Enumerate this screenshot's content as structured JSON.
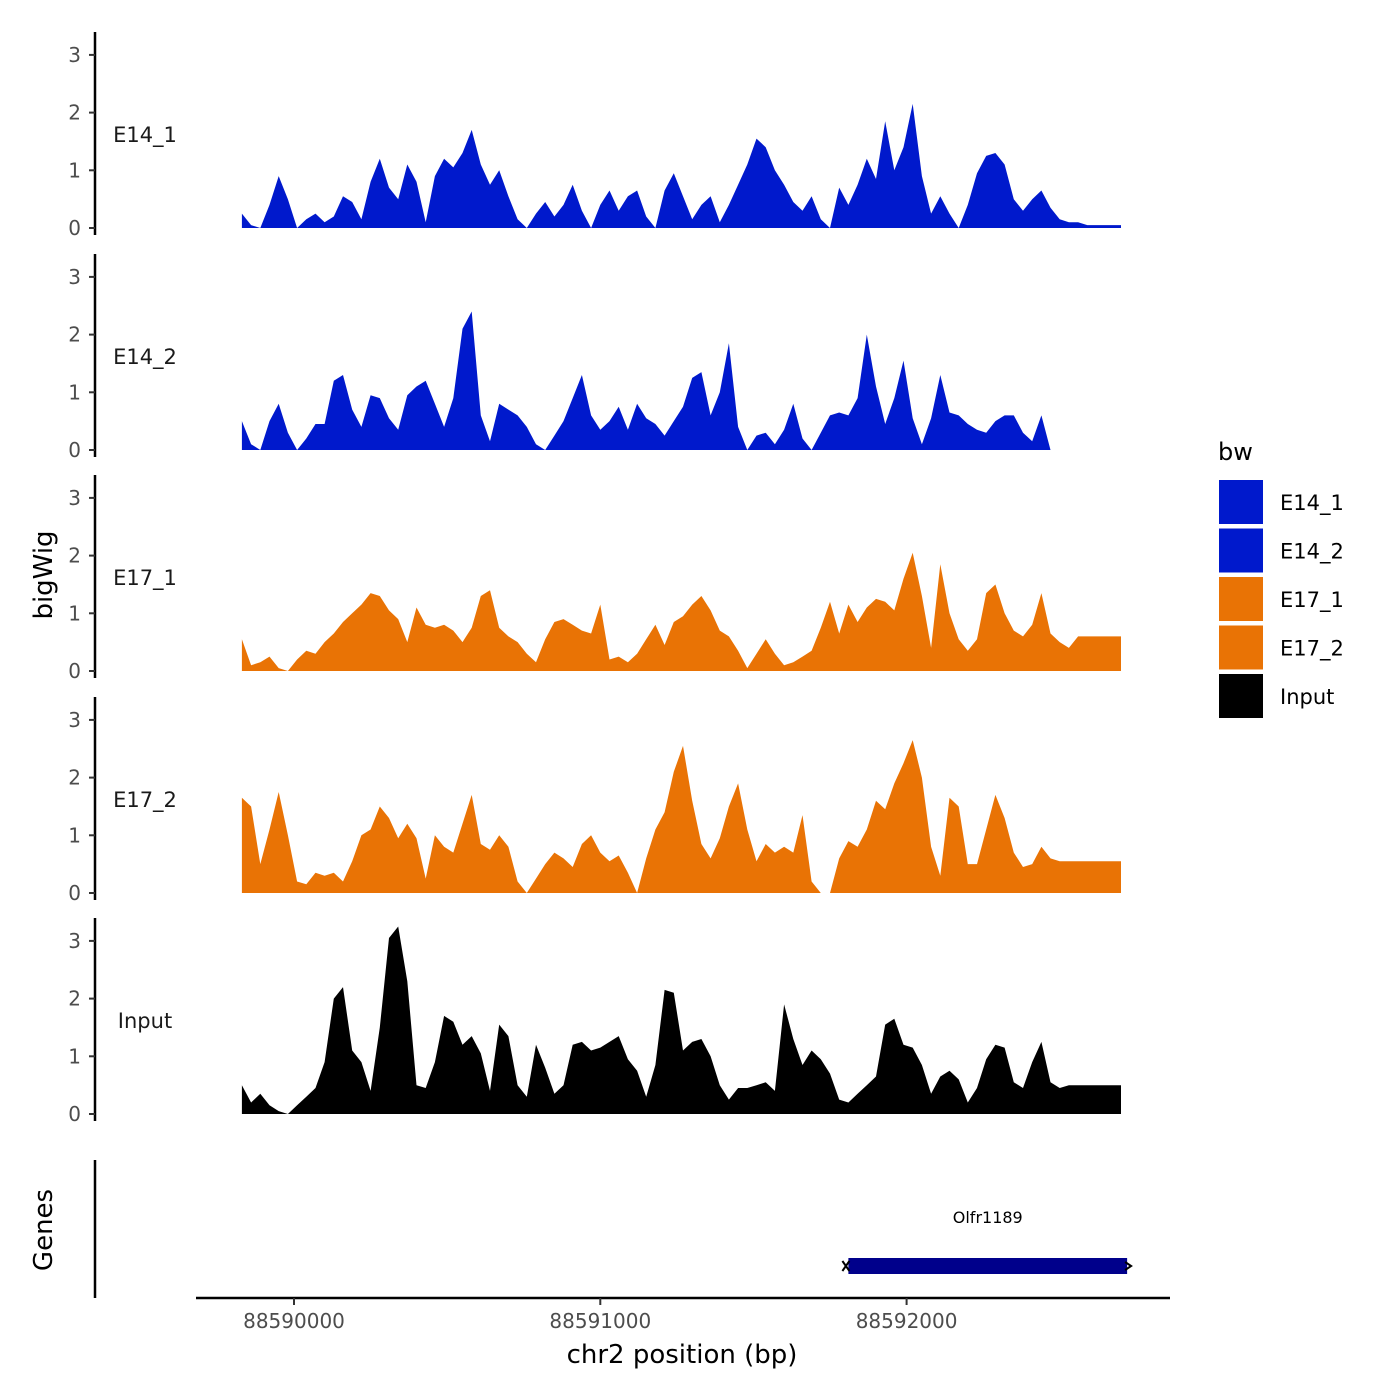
{
  "chart_data": {
    "type": "area",
    "ylabel": "bigWig",
    "xlabel": "chr2 position (bp)",
    "genes_label": "Genes",
    "xlim": [
      88589680,
      88592860
    ],
    "ylim": [
      0,
      3.3
    ],
    "y_ticks": [
      "0",
      "1",
      "2",
      "3"
    ],
    "x_ticks": [
      {
        "value": 88590000,
        "label": "88590000"
      },
      {
        "value": 88591000,
        "label": "88591000"
      },
      {
        "value": 88592000,
        "label": "88592000"
      }
    ],
    "legend": {
      "title": "bw",
      "items": [
        {
          "label": "E14_1",
          "color": "#0019CC"
        },
        {
          "label": "E14_2",
          "color": "#0019CC"
        },
        {
          "label": "E17_1",
          "color": "#E97305"
        },
        {
          "label": "E17_2",
          "color": "#E97305"
        },
        {
          "label": "Input",
          "color": "#000000"
        }
      ]
    },
    "x": [
      88589830,
      88589860,
      88589890,
      88589920,
      88589950,
      88589980,
      88590010,
      88590040,
      88590070,
      88590100,
      88590130,
      88590160,
      88590190,
      88590220,
      88590250,
      88590280,
      88590310,
      88590340,
      88590370,
      88590400,
      88590430,
      88590460,
      88590490,
      88590520,
      88590550,
      88590580,
      88590610,
      88590640,
      88590670,
      88590700,
      88590730,
      88590760,
      88590790,
      88590820,
      88590850,
      88590880,
      88590910,
      88590940,
      88590970,
      88591000,
      88591030,
      88591060,
      88591090,
      88591120,
      88591150,
      88591180,
      88591210,
      88591240,
      88591270,
      88591300,
      88591330,
      88591360,
      88591390,
      88591420,
      88591450,
      88591480,
      88591510,
      88591540,
      88591570,
      88591600,
      88591630,
      88591660,
      88591690,
      88591720,
      88591750,
      88591780,
      88591810,
      88591840,
      88591870,
      88591900,
      88591930,
      88591960,
      88591990,
      88592020,
      88592050,
      88592080,
      88592110,
      88592140,
      88592170,
      88592200,
      88592230,
      88592260,
      88592290,
      88592320,
      88592350,
      88592380,
      88592410,
      88592440,
      88592470,
      88592500,
      88592530,
      88592560,
      88592590,
      88592620,
      88592650,
      88592680,
      88592700
    ],
    "series": [
      {
        "name": "E14_1",
        "color": "#0019CC",
        "values": [
          0.25,
          0.05,
          0,
          0.4,
          0.9,
          0.5,
          0,
          0.15,
          0.25,
          0.1,
          0.2,
          0.55,
          0.45,
          0.15,
          0.8,
          1.2,
          0.7,
          0.5,
          1.1,
          0.8,
          0.1,
          0.9,
          1.2,
          1.05,
          1.3,
          1.7,
          1.1,
          0.75,
          1.0,
          0.55,
          0.15,
          0,
          0.25,
          0.45,
          0.2,
          0.4,
          0.75,
          0.3,
          0,
          0.4,
          0.65,
          0.3,
          0.55,
          0.65,
          0.2,
          0,
          0.65,
          0.95,
          0.55,
          0.15,
          0.4,
          0.55,
          0.1,
          0.4,
          0.75,
          1.1,
          1.55,
          1.4,
          1.0,
          0.75,
          0.45,
          0.3,
          0.55,
          0.15,
          0,
          0.7,
          0.4,
          0.75,
          1.2,
          0.85,
          1.85,
          1.0,
          1.4,
          2.15,
          0.9,
          0.25,
          0.55,
          0.25,
          0,
          0.4,
          0.95,
          1.25,
          1.3,
          1.1,
          0.5,
          0.3,
          0.5,
          0.65,
          0.35,
          0.15,
          0.1,
          0.1,
          0.05,
          0.05,
          0.05,
          0.05,
          0.05
        ]
      },
      {
        "name": "E14_2",
        "color": "#0019CC",
        "values": [
          0.5,
          0.1,
          0,
          0.5,
          0.8,
          0.3,
          0,
          0.2,
          0.45,
          0.45,
          1.2,
          1.3,
          0.7,
          0.4,
          0.95,
          0.9,
          0.55,
          0.35,
          0.95,
          1.1,
          1.2,
          0.8,
          0.4,
          0.9,
          2.1,
          2.4,
          0.6,
          0.15,
          0.8,
          0.7,
          0.6,
          0.4,
          0.1,
          0,
          0.25,
          0.5,
          0.9,
          1.3,
          0.6,
          0.35,
          0.5,
          0.75,
          0.35,
          0.8,
          0.55,
          0.45,
          0.25,
          0.5,
          0.75,
          1.25,
          1.35,
          0.6,
          1.0,
          1.85,
          0.4,
          0,
          0.25,
          0.3,
          0.1,
          0.35,
          0.8,
          0.2,
          0,
          0.3,
          0.6,
          0.65,
          0.6,
          0.9,
          2.0,
          1.1,
          0.45,
          0.9,
          1.55,
          0.55,
          0.1,
          0.55,
          1.3,
          0.65,
          0.6,
          0.45,
          0.35,
          0.3,
          0.5,
          0.6,
          0.6,
          0.3,
          0.15,
          0.6,
          0,
          0,
          0,
          0,
          0,
          0,
          0,
          0,
          0
        ]
      },
      {
        "name": "E17_1",
        "color": "#E97305",
        "values": [
          0.55,
          0.1,
          0.15,
          0.25,
          0.05,
          0,
          0.2,
          0.35,
          0.3,
          0.5,
          0.65,
          0.85,
          1.0,
          1.15,
          1.35,
          1.3,
          1.05,
          0.9,
          0.5,
          1.1,
          0.8,
          0.75,
          0.8,
          0.7,
          0.5,
          0.75,
          1.3,
          1.4,
          0.75,
          0.6,
          0.5,
          0.3,
          0.15,
          0.55,
          0.85,
          0.9,
          0.8,
          0.7,
          0.65,
          1.15,
          0.2,
          0.25,
          0.15,
          0.3,
          0.55,
          0.8,
          0.45,
          0.85,
          0.95,
          1.15,
          1.3,
          1.05,
          0.7,
          0.6,
          0.35,
          0.05,
          0.3,
          0.55,
          0.3,
          0.1,
          0.15,
          0.25,
          0.35,
          0.75,
          1.2,
          0.65,
          1.15,
          0.85,
          1.1,
          1.25,
          1.2,
          1.05,
          1.6,
          2.05,
          1.3,
          0.4,
          1.85,
          1.0,
          0.55,
          0.35,
          0.55,
          1.35,
          1.5,
          1.0,
          0.7,
          0.6,
          0.8,
          1.35,
          0.65,
          0.5,
          0.4,
          0.6,
          0.6,
          0.6,
          0.6,
          0.6,
          0.6
        ]
      },
      {
        "name": "E17_2",
        "color": "#E97305",
        "values": [
          1.65,
          1.5,
          0.5,
          1.1,
          1.75,
          1.0,
          0.2,
          0.15,
          0.35,
          0.3,
          0.35,
          0.2,
          0.55,
          1.0,
          1.1,
          1.5,
          1.3,
          0.95,
          1.2,
          0.95,
          0.25,
          1.0,
          0.8,
          0.7,
          1.2,
          1.7,
          0.85,
          0.75,
          1.0,
          0.8,
          0.2,
          0,
          0.25,
          0.5,
          0.7,
          0.6,
          0.45,
          0.85,
          1.0,
          0.7,
          0.55,
          0.65,
          0.35,
          0,
          0.6,
          1.1,
          1.4,
          2.1,
          2.55,
          1.6,
          0.85,
          0.6,
          0.95,
          1.5,
          1.9,
          1.1,
          0.55,
          0.85,
          0.7,
          0.8,
          0.7,
          1.35,
          0.2,
          0,
          0,
          0.6,
          0.9,
          0.8,
          1.1,
          1.6,
          1.45,
          1.9,
          2.25,
          2.65,
          2.0,
          0.8,
          0.3,
          1.65,
          1.5,
          0.5,
          0.5,
          1.1,
          1.7,
          1.3,
          0.7,
          0.45,
          0.5,
          0.8,
          0.6,
          0.55,
          0.55,
          0.55,
          0.55,
          0.55,
          0.55,
          0.55,
          0.55
        ]
      },
      {
        "name": "Input",
        "color": "#000000",
        "values": [
          0.5,
          0.2,
          0.35,
          0.15,
          0.05,
          0,
          0.15,
          0.3,
          0.45,
          0.9,
          2.0,
          2.2,
          1.1,
          0.9,
          0.4,
          1.5,
          3.05,
          3.25,
          2.3,
          0.5,
          0.45,
          0.9,
          1.7,
          1.6,
          1.2,
          1.35,
          1.05,
          0.4,
          1.55,
          1.35,
          0.5,
          0.3,
          1.2,
          0.8,
          0.35,
          0.5,
          1.2,
          1.25,
          1.1,
          1.15,
          1.25,
          1.35,
          0.95,
          0.75,
          0.3,
          0.85,
          2.15,
          2.1,
          1.1,
          1.25,
          1.3,
          1.0,
          0.5,
          0.25,
          0.45,
          0.45,
          0.5,
          0.55,
          0.4,
          1.9,
          1.3,
          0.85,
          1.1,
          0.95,
          0.7,
          0.25,
          0.2,
          0.35,
          0.5,
          0.65,
          1.55,
          1.65,
          1.2,
          1.15,
          0.85,
          0.35,
          0.65,
          0.75,
          0.6,
          0.2,
          0.45,
          0.95,
          1.2,
          1.15,
          0.55,
          0.45,
          0.9,
          1.25,
          0.55,
          0.45,
          0.5,
          0.5,
          0.5,
          0.5,
          0.5,
          0.5,
          0.5
        ]
      }
    ],
    "genes": [
      {
        "name": "Olfr1189",
        "start": 88591810,
        "end": 88592720,
        "color": "#00008B"
      }
    ]
  }
}
